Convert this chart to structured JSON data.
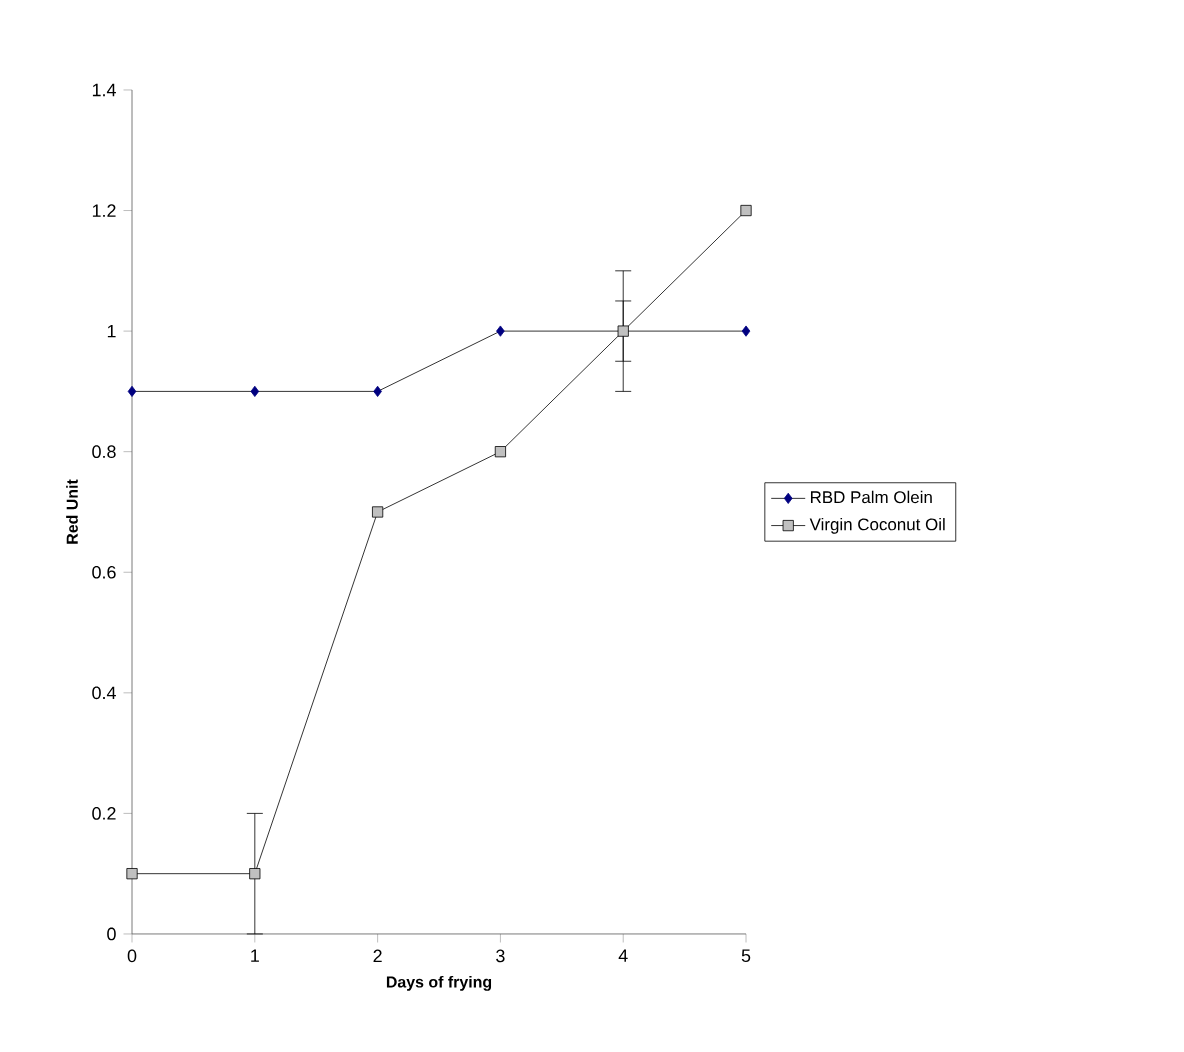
{
  "chart_data": {
    "type": "line",
    "xlabel": "Days of frying",
    "ylabel": "Red Unit",
    "x": [
      0,
      1,
      2,
      3,
      4,
      5
    ],
    "xlim": [
      0,
      5
    ],
    "xticks": [
      0,
      1,
      2,
      3,
      4,
      5
    ],
    "ylim": [
      0,
      1.4
    ],
    "yticks": [
      0,
      0.2,
      0.4,
      0.6,
      0.8,
      1,
      1.2,
      1.4
    ],
    "legend": "right",
    "grid": false,
    "line_style": "solid",
    "series": [
      {
        "name": "RBD Palm Olein",
        "color": "#000080",
        "marker": "diamond",
        "values": [
          0.9,
          0.9,
          0.9,
          1,
          1,
          1
        ],
        "errors": [
          null,
          null,
          null,
          null,
          0.05,
          null
        ]
      },
      {
        "name": "Virgin Coconut Oil",
        "color": "#c0c0c0",
        "marker": "square",
        "values": [
          0.1,
          0.1,
          0.7,
          0.8,
          1,
          1.2
        ],
        "errors": [
          null,
          0.1,
          null,
          null,
          0.1,
          null
        ]
      }
    ]
  }
}
